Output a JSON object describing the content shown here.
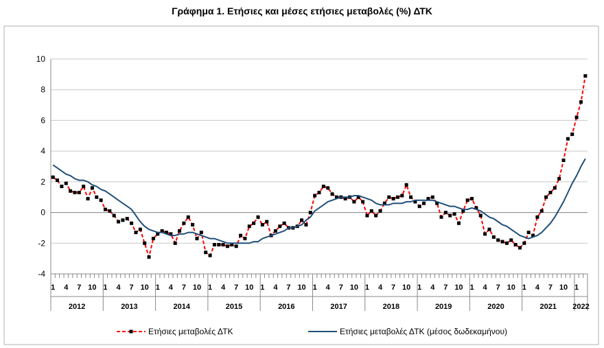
{
  "chart_data": {
    "type": "line",
    "title": "Γράφημα 1. Ετήσιες και μέσες ετήσιες μεταβολές (%) ΔΤΚ",
    "ylim": [
      -4,
      10
    ],
    "yticks": [
      "10",
      "8",
      "6",
      "4",
      "2",
      "0",
      "-2",
      "-4"
    ],
    "ytick_values": [
      10,
      8,
      6,
      4,
      2,
      0,
      -2,
      -4
    ],
    "grid": true,
    "legend_position": "bottom",
    "month_labels": [
      "1",
      "4",
      "7",
      "10"
    ],
    "years": [
      "2012",
      "2013",
      "2014",
      "2015",
      "2016",
      "2017",
      "2018",
      "2019",
      "2020",
      "2021",
      "2022"
    ],
    "series": [
      {
        "name": "Ετήσιες μεταβολές ΔΤΚ",
        "color": "#ff0000",
        "marker_color": "#000000",
        "style": "dashed-markers",
        "values": [
          2.3,
          2.1,
          1.7,
          1.9,
          1.4,
          1.3,
          1.3,
          1.7,
          0.9,
          1.6,
          1.0,
          0.8,
          0.2,
          0.1,
          -0.2,
          -0.6,
          -0.5,
          -0.4,
          -0.7,
          -1.3,
          -1.1,
          -2.0,
          -2.9,
          -1.7,
          -1.4,
          -1.2,
          -1.3,
          -1.4,
          -2.0,
          -1.2,
          -0.7,
          -0.3,
          -0.8,
          -1.7,
          -1.3,
          -2.6,
          -2.8,
          -2.1,
          -2.1,
          -2.1,
          -2.2,
          -2.1,
          -2.2,
          -1.5,
          -1.7,
          -0.9,
          -0.7,
          -0.3,
          -0.8,
          -0.6,
          -1.5,
          -1.2,
          -0.9,
          -0.7,
          -1.0,
          -1.0,
          -0.9,
          -0.5,
          -0.8,
          0.0,
          1.1,
          1.3,
          1.7,
          1.6,
          1.2,
          1.0,
          1.0,
          0.9,
          1.0,
          0.7,
          1.0,
          0.7,
          -0.2,
          0.1,
          -0.2,
          0.1,
          0.6,
          1.0,
          0.9,
          1.0,
          1.1,
          1.8,
          1.0,
          0.7,
          0.4,
          0.6,
          0.9,
          1.0,
          0.6,
          -0.3,
          0.0,
          -0.2,
          -0.1,
          -0.7,
          0.1,
          0.8,
          0.9,
          0.3,
          -0.2,
          -1.4,
          -1.1,
          -1.6,
          -1.8,
          -1.9,
          -2.0,
          -1.8,
          -2.1,
          -2.3,
          -2.0,
          -1.3,
          -1.5,
          -0.3,
          0.1,
          1.0,
          1.3,
          1.6,
          2.2,
          3.4,
          4.8,
          5.1,
          6.2,
          7.2,
          8.9
        ]
      },
      {
        "name": "Ετήσιες μεταβολές ΔΤΚ (μέσος δωδεκαμήνου)",
        "color": "#1f4e79",
        "style": "solid",
        "values": [
          3.1,
          2.9,
          2.7,
          2.5,
          2.4,
          2.2,
          2.1,
          2.1,
          2.0,
          1.8,
          1.7,
          1.5,
          1.4,
          1.2,
          1.0,
          0.8,
          0.6,
          0.4,
          0.2,
          -0.2,
          -0.6,
          -0.9,
          -1.1,
          -1.2,
          -1.3,
          -1.3,
          -1.4,
          -1.5,
          -1.5,
          -1.4,
          -1.4,
          -1.3,
          -1.3,
          -1.4,
          -1.5,
          -1.6,
          -1.7,
          -1.7,
          -1.8,
          -1.9,
          -2.0,
          -2.0,
          -2.0,
          -2.0,
          -2.0,
          -2.0,
          -1.9,
          -1.9,
          -1.7,
          -1.6,
          -1.5,
          -1.4,
          -1.3,
          -1.2,
          -1.0,
          -1.0,
          -0.9,
          -0.8,
          -0.5,
          -0.3,
          0.1,
          0.3,
          0.5,
          0.7,
          0.8,
          0.9,
          1.0,
          1.0,
          1.0,
          1.1,
          1.1,
          1.0,
          0.9,
          0.8,
          0.6,
          0.5,
          0.5,
          0.5,
          0.6,
          0.6,
          0.6,
          0.7,
          0.7,
          0.8,
          0.8,
          0.8,
          0.8,
          0.8,
          0.7,
          0.6,
          0.5,
          0.4,
          0.4,
          0.3,
          0.2,
          0.2,
          0.3,
          0.2,
          0.1,
          -0.1,
          -0.3,
          -0.4,
          -0.6,
          -0.8,
          -0.9,
          -1.1,
          -1.3,
          -1.5,
          -1.6,
          -1.7,
          -1.6,
          -1.5,
          -1.3,
          -1.0,
          -0.7,
          -0.3,
          0.2,
          0.7,
          1.3,
          1.9,
          2.4,
          3.0,
          3.5
        ]
      }
    ]
  }
}
